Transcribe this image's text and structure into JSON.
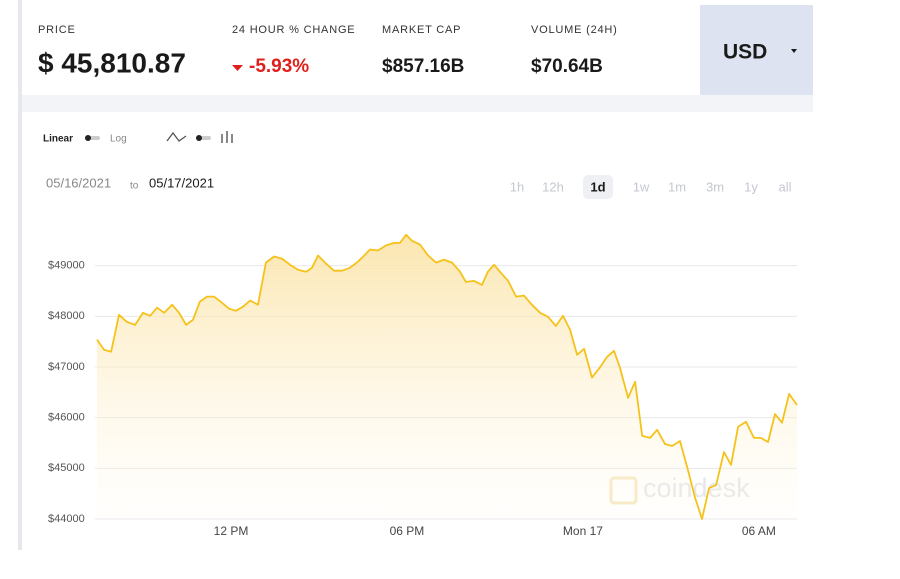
{
  "header": {
    "price_label": "PRICE",
    "price": "$ 45,810.87",
    "change_label": "24 HOUR % CHANGE",
    "change": "-5.93%",
    "market_cap_label": "MARKET CAP",
    "market_cap": "$857.16B",
    "volume_label": "VOLUME (24H)",
    "volume": "$70.64B",
    "currency": "USD"
  },
  "controls": {
    "linear": "Linear",
    "log": "Log",
    "date_from": "05/16/2021",
    "date_sep": "to",
    "date_to": "05/17/2021",
    "ranges": [
      "1h",
      "12h",
      "1d",
      "1w",
      "1m",
      "3m",
      "1y",
      "all"
    ],
    "selected_range": 2
  },
  "watermark": "coindesk",
  "chart_data": {
    "type": "line",
    "color": "#f5c21b",
    "grid": true,
    "x": [
      7.43,
      7.67,
      7.91,
      8.18,
      8.45,
      8.73,
      9.0,
      9.24,
      9.48,
      9.72,
      9.99,
      10.23,
      10.47,
      10.7,
      10.94,
      11.18,
      11.42,
      11.69,
      11.93,
      12.17,
      12.41,
      12.65,
      12.92,
      13.19,
      13.47,
      13.74,
      14.01,
      14.28,
      14.56,
      14.76,
      14.97,
      15.24,
      15.51,
      15.79,
      16.06,
      16.33,
      16.54,
      16.74,
      17.01,
      17.29,
      17.56,
      17.76,
      17.97,
      18.17,
      18.44,
      18.72,
      18.99,
      19.26,
      19.54,
      19.81,
      20.01,
      20.29,
      20.56,
      20.76,
      20.97,
      21.17,
      21.45,
      21.72,
      21.99,
      22.26,
      22.54,
      22.81,
      23.08,
      23.32,
      23.56,
      23.8,
      24.04,
      24.31,
      24.58,
      24.82,
      25.06,
      25.26,
      25.54,
      25.78,
      26.02,
      26.29,
      26.53,
      26.8,
      27.04,
      27.31,
      27.58,
      27.82,
      28.06,
      28.3,
      28.54,
      28.81,
      29.05,
      29.29,
      29.56,
      29.83,
      30.07,
      30.31,
      30.55,
      30.79,
      31.03,
      31.3
    ],
    "values": [
      47540,
      47340,
      47300,
      48030,
      47890,
      47830,
      48070,
      48010,
      48170,
      48070,
      48230,
      48070,
      47830,
      47930,
      48290,
      48390,
      48390,
      48270,
      48150,
      48110,
      48190,
      48310,
      48230,
      49060,
      49180,
      49140,
      49020,
      48920,
      48880,
      48960,
      49200,
      49040,
      48900,
      48900,
      48960,
      49080,
      49200,
      49320,
      49300,
      49400,
      49450,
      49450,
      49610,
      49490,
      49420,
      49200,
      49060,
      49120,
      49060,
      48880,
      48680,
      48700,
      48620,
      48880,
      49020,
      48880,
      48700,
      48390,
      48410,
      48230,
      48070,
      47990,
      47810,
      48010,
      47740,
      47240,
      47360,
      46790,
      46990,
      47200,
      47320,
      46990,
      46390,
      46710,
      45640,
      45600,
      45760,
      45480,
      45440,
      45540,
      44970,
      44430,
      44000,
      44610,
      44670,
      45320,
      45070,
      45820,
      45920,
      45600,
      45600,
      45520,
      46070,
      45900,
      46470,
      46250
    ],
    "xlim": [
      7.43,
      31.3
    ],
    "ylim": [
      44000,
      50000
    ],
    "xticks": [
      {
        "value": 12,
        "label": "12 PM"
      },
      {
        "value": 18,
        "label": "06 PM"
      },
      {
        "value": 24,
        "label": "Mon 17"
      },
      {
        "value": 30,
        "label": "06 AM"
      }
    ],
    "yticks": [
      {
        "value": 44000,
        "label": "$44000"
      },
      {
        "value": 45000,
        "label": "$45000"
      },
      {
        "value": 46000,
        "label": "$46000"
      },
      {
        "value": 47000,
        "label": "$47000"
      },
      {
        "value": 48000,
        "label": "$48000"
      },
      {
        "value": 49000,
        "label": "$49000"
      }
    ]
  }
}
